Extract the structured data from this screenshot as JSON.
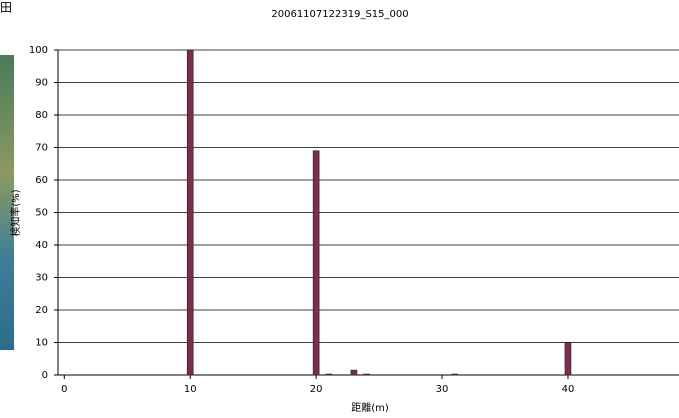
{
  "fragment_text": "田",
  "chart_data": {
    "type": "bar",
    "title": "20061107122319_S15_000",
    "x_label": "距離(m)",
    "y_label": "検知率(%)",
    "x": [
      10,
      20,
      21,
      23,
      24,
      31,
      40
    ],
    "values": [
      100,
      69,
      0.3,
      1.5,
      0.3,
      0.3,
      10
    ],
    "color": "#7b2c4f",
    "xlim": [
      -0.5,
      48.5
    ],
    "xticks": [
      0,
      10,
      20,
      30,
      40
    ],
    "ylim": [
      0,
      100
    ],
    "yticks": [
      0,
      10,
      20,
      30,
      40,
      50,
      60,
      70,
      80,
      90,
      100
    ],
    "grid": true
  }
}
